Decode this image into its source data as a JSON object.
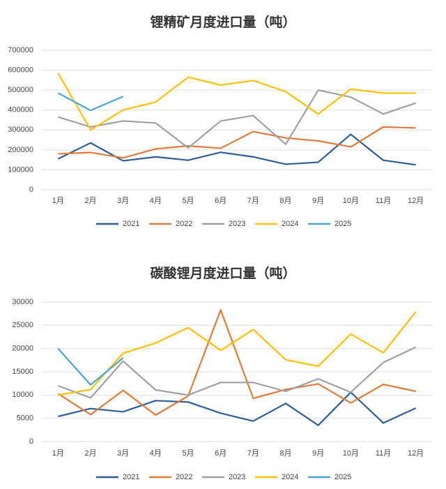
{
  "chart_data": [
    {
      "type": "line",
      "title": "锂精矿月度进口量（吨）",
      "categories": [
        "1月",
        "2月",
        "3月",
        "4月",
        "5月",
        "6月",
        "7月",
        "8月",
        "9月",
        "10月",
        "11月",
        "12月"
      ],
      "series": [
        {
          "name": "2021",
          "color": "#2e5d9b",
          "values": [
            155000,
            235000,
            145000,
            165000,
            148000,
            188000,
            165000,
            128000,
            138000,
            278000,
            148000,
            125000
          ]
        },
        {
          "name": "2022",
          "color": "#e07b39",
          "values": [
            180000,
            187000,
            160000,
            205000,
            220000,
            208000,
            292000,
            260000,
            245000,
            215000,
            315000,
            310000
          ]
        },
        {
          "name": "2023",
          "color": "#a0a0a0",
          "values": [
            365000,
            315000,
            345000,
            335000,
            210000,
            345000,
            372000,
            228000,
            500000,
            465000,
            380000,
            435000
          ]
        },
        {
          "name": "2024",
          "color": "#ffc000",
          "values": [
            585000,
            300000,
            400000,
            440000,
            565000,
            525000,
            548000,
            492000,
            380000,
            505000,
            485000,
            485000
          ]
        },
        {
          "name": "2025",
          "color": "#4aa3d4",
          "values": [
            485000,
            398000,
            468000,
            null,
            null,
            null,
            null,
            null,
            null,
            null,
            null,
            null
          ]
        }
      ],
      "ylim": [
        0,
        700000
      ],
      "yticks": [
        0,
        100000,
        200000,
        300000,
        400000,
        500000,
        600000,
        700000
      ],
      "grid": true,
      "legend": "bottom"
    },
    {
      "type": "line",
      "title": "碳酸锂月度进口量（吨）",
      "categories": [
        "1月",
        "2月",
        "3月",
        "4月",
        "5月",
        "6月",
        "7月",
        "8月",
        "9月",
        "10月",
        "11月",
        "12月"
      ],
      "series": [
        {
          "name": "2021",
          "color": "#2e5d9b",
          "values": [
            5400,
            7100,
            6400,
            8800,
            8500,
            6100,
            4400,
            8200,
            3500,
            10600,
            4000,
            7200
          ]
        },
        {
          "name": "2022",
          "color": "#e07b39",
          "values": [
            10300,
            5800,
            11000,
            5700,
            9800,
            28300,
            9300,
            11200,
            12400,
            8300,
            12300,
            10800
          ]
        },
        {
          "name": "2023",
          "color": "#a0a0a0",
          "values": [
            12000,
            9400,
            17300,
            11100,
            10000,
            12700,
            12700,
            10800,
            13500,
            10600,
            17000,
            20300
          ]
        },
        {
          "name": "2024",
          "color": "#ffc000",
          "values": [
            10000,
            11200,
            19000,
            21200,
            24500,
            19600,
            24100,
            17600,
            16200,
            23100,
            19100,
            27900
          ]
        },
        {
          "name": "2025",
          "color": "#4aa3d4",
          "values": [
            20000,
            12200,
            18000,
            null,
            null,
            null,
            null,
            null,
            null,
            null,
            null,
            null
          ]
        }
      ],
      "ylim": [
        0,
        30000
      ],
      "yticks": [
        0,
        5000,
        10000,
        15000,
        20000,
        25000,
        30000
      ],
      "grid": true,
      "legend": "bottom"
    }
  ]
}
